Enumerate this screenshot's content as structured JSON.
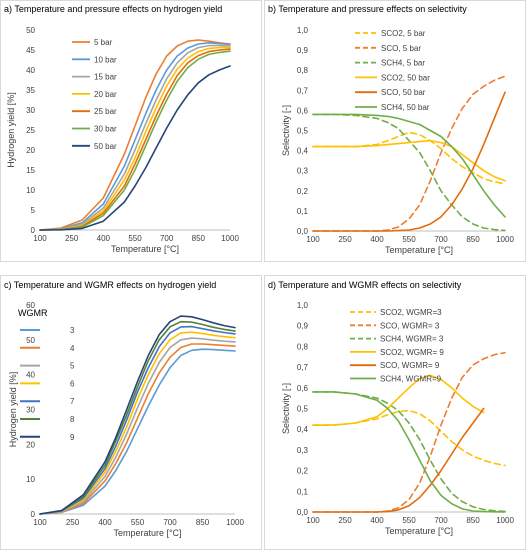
{
  "colors": {
    "orange": "#ED7D31",
    "lightblue": "#5B9BD5",
    "gray": "#A5A5A5",
    "yellow": "#FFC000",
    "darkorange": "#E46C0A",
    "green": "#70AD47",
    "navy": "#264478",
    "blue7": "#4472C4",
    "green8": "#548235"
  },
  "chart_data": [
    {
      "type": "line",
      "title": "a) Temperature and pressure effects on hydrogen yield",
      "xlabel": "Temperature [°C]",
      "ylabel": "Hydrogen yield [%]",
      "xlim": [
        100,
        1000
      ],
      "ylim": [
        0,
        50
      ],
      "xticks": [
        "100",
        "250",
        "400",
        "550",
        "700",
        "850",
        "1000"
      ],
      "yticks": [
        "0",
        "5",
        "10",
        "15",
        "20",
        "25",
        "30",
        "35",
        "40",
        "45",
        "50"
      ],
      "legend_title": "",
      "x": [
        100,
        200,
        300,
        400,
        500,
        550,
        600,
        650,
        700,
        750,
        800,
        850,
        900,
        950,
        1000
      ],
      "series": [
        {
          "name": "5 bar",
          "color": "#ED7D31",
          "dash": "",
          "values": [
            0,
            0.5,
            2.5,
            8,
            19,
            26,
            33,
            39,
            43.5,
            46,
            47.2,
            47.5,
            47.2,
            46.8,
            46.5
          ]
        },
        {
          "name": "10 bar",
          "color": "#5B9BD5",
          "dash": "",
          "values": [
            0,
            0.3,
            1.8,
            6.5,
            16,
            22.5,
            29,
            35,
            40,
            43.5,
            45.5,
            46.5,
            46.8,
            46.6,
            46.4
          ]
        },
        {
          "name": "15 bar",
          "color": "#A5A5A5",
          "dash": "",
          "values": [
            0,
            0.2,
            1.4,
            5.5,
            14,
            20,
            26.5,
            32.5,
            37.8,
            41.8,
            44.3,
            45.6,
            46.1,
            46.1,
            46
          ]
        },
        {
          "name": "20 bar",
          "color": "#FFC000",
          "dash": "",
          "values": [
            0,
            0.2,
            1.1,
            4.8,
            12.5,
            18,
            24.5,
            30.5,
            36,
            40.2,
            43,
            44.6,
            45.4,
            45.6,
            45.6
          ]
        },
        {
          "name": "25 bar",
          "color": "#E46C0A",
          "dash": "",
          "values": [
            0,
            0.1,
            0.9,
            4.2,
            11,
            16.5,
            22.5,
            28.5,
            34,
            38.6,
            41.8,
            43.6,
            44.6,
            45,
            45.2
          ]
        },
        {
          "name": "30 bar",
          "color": "#70AD47",
          "dash": "",
          "values": [
            0,
            0.1,
            0.7,
            3.6,
            10,
            15,
            21,
            27,
            32.5,
            37.2,
            40.6,
            42.7,
            43.9,
            44.4,
            44.7
          ]
        },
        {
          "name": "50 bar",
          "color": "#264478",
          "dash": "",
          "values": [
            0,
            0.05,
            0.4,
            2.2,
            7,
            11,
            15.5,
            20.5,
            25.5,
            30,
            33.8,
            36.8,
            38.8,
            40,
            41
          ]
        }
      ]
    },
    {
      "type": "line",
      "title": "b) Temperature and pressure effects on selectivity",
      "xlabel": "Temperature [°C]",
      "ylabel": "Selectivity [-]",
      "xlim": [
        100,
        1000
      ],
      "ylim": [
        0,
        1
      ],
      "xticks": [
        "100",
        "250",
        "400",
        "550",
        "700",
        "850",
        "1000"
      ],
      "yticks": [
        "0,0",
        "0,1",
        "0,2",
        "0,3",
        "0,4",
        "0,5",
        "0,6",
        "0,7",
        "0,8",
        "0,9",
        "1,0"
      ],
      "legend_title": "",
      "x": [
        100,
        200,
        300,
        400,
        450,
        500,
        550,
        600,
        650,
        700,
        750,
        800,
        850,
        900,
        950,
        1000
      ],
      "series": [
        {
          "name": "SCO2, 5 bar",
          "color": "#FFC000",
          "dash": "6,4",
          "values": [
            0.42,
            0.42,
            0.42,
            0.43,
            0.45,
            0.47,
            0.49,
            0.48,
            0.45,
            0.41,
            0.36,
            0.32,
            0.29,
            0.26,
            0.245,
            0.235
          ]
        },
        {
          "name": "SCO, 5 bar",
          "color": "#ED7D31",
          "dash": "6,4",
          "values": [
            0,
            0,
            0,
            0,
            0.005,
            0.02,
            0.06,
            0.13,
            0.25,
            0.39,
            0.51,
            0.61,
            0.68,
            0.72,
            0.75,
            0.77
          ]
        },
        {
          "name": "SCH4, 5 bar",
          "color": "#70AD47",
          "dash": "6,4",
          "values": [
            0.58,
            0.58,
            0.575,
            0.56,
            0.54,
            0.51,
            0.45,
            0.39,
            0.3,
            0.2,
            0.13,
            0.07,
            0.035,
            0.015,
            0.007,
            0.003
          ]
        },
        {
          "name": "SCO2, 50 bar",
          "color": "#FFC000",
          "dash": "",
          "values": [
            0.42,
            0.42,
            0.42,
            0.425,
            0.43,
            0.435,
            0.44,
            0.445,
            0.45,
            0.44,
            0.42,
            0.38,
            0.34,
            0.3,
            0.27,
            0.25
          ]
        },
        {
          "name": "SCO, 50 bar",
          "color": "#E46C0A",
          "dash": "",
          "values": [
            0,
            0,
            0,
            0,
            0,
            0.002,
            0.005,
            0.015,
            0.035,
            0.07,
            0.13,
            0.21,
            0.31,
            0.43,
            0.56,
            0.69
          ]
        },
        {
          "name": "SCH4, 50 bar",
          "color": "#70AD47",
          "dash": "",
          "values": [
            0.58,
            0.58,
            0.58,
            0.575,
            0.57,
            0.56,
            0.545,
            0.53,
            0.5,
            0.47,
            0.42,
            0.36,
            0.28,
            0.2,
            0.13,
            0.07
          ]
        }
      ]
    },
    {
      "type": "line",
      "title": "c) Temperature and WGMR effects on hydrogen yield",
      "xlabel": "Temperature [°C]",
      "ylabel": "Hydrogen yield [%]",
      "xlim": [
        100,
        1000
      ],
      "ylim": [
        0,
        60
      ],
      "xticks": [
        "100",
        "250",
        "400",
        "550",
        "700",
        "850",
        "1000"
      ],
      "yticks": [
        "0",
        "10",
        "20",
        "30",
        "40",
        "50",
        "60"
      ],
      "legend_title": "WGMR",
      "x": [
        100,
        200,
        300,
        400,
        450,
        500,
        550,
        600,
        650,
        700,
        750,
        800,
        850,
        900,
        950,
        1000
      ],
      "series": [
        {
          "name": "3",
          "color": "#5B9BD5",
          "dash": "",
          "values": [
            0,
            0.5,
            2.5,
            8,
            12.5,
            18,
            24.5,
            31,
            37,
            42,
            45.5,
            47,
            47.3,
            47.2,
            47,
            46.8
          ]
        },
        {
          "name": "4",
          "color": "#ED7D31",
          "dash": "",
          "values": [
            0,
            0.6,
            3,
            9.5,
            14.5,
            20.5,
            27.5,
            34.5,
            40.5,
            45,
            47.8,
            48.8,
            48.8,
            48.6,
            48.4,
            48.2
          ]
        },
        {
          "name": "5",
          "color": "#A5A5A5",
          "dash": "",
          "values": [
            0,
            0.7,
            3.5,
            10.8,
            16.3,
            23,
            30.5,
            37.5,
            43.5,
            47.8,
            50,
            50.5,
            50.3,
            49.9,
            49.6,
            49.4
          ]
        },
        {
          "name": "6",
          "color": "#FFC000",
          "dash": "",
          "values": [
            0,
            0.8,
            4,
            12,
            18,
            25,
            33,
            40,
            46,
            50,
            52,
            52.2,
            51.8,
            51.3,
            50.9,
            50.6
          ]
        },
        {
          "name": "7",
          "color": "#4472C4",
          "dash": "",
          "values": [
            0,
            0.9,
            4.5,
            13,
            19.5,
            27,
            35,
            42,
            48,
            52,
            53.7,
            53.8,
            53.2,
            52.6,
            52.1,
            51.7
          ]
        },
        {
          "name": "8",
          "color": "#548235",
          "dash": "",
          "values": [
            0,
            1,
            5,
            14,
            21,
            28.5,
            36.5,
            44,
            50,
            53.7,
            55.2,
            55.1,
            54.4,
            53.6,
            53,
            52.5
          ]
        },
        {
          "name": "9",
          "color": "#264478",
          "dash": "",
          "values": [
            0,
            1,
            5.5,
            15,
            22,
            30,
            38,
            45.5,
            51.5,
            55.2,
            56.8,
            56.6,
            55.8,
            54.9,
            54.1,
            53.5
          ]
        }
      ]
    },
    {
      "type": "line",
      "title": "d) Temperature and WGMR effects on selectivity",
      "xlabel": "Temperature [°C]",
      "ylabel": "Selectivity [-]",
      "xlim": [
        100,
        1000
      ],
      "ylim": [
        0,
        1
      ],
      "xticks": [
        "100",
        "250",
        "400",
        "550",
        "700",
        "850",
        "1000"
      ],
      "yticks": [
        "0,0",
        "0,1",
        "0,2",
        "0,3",
        "0,4",
        "0,5",
        "0,6",
        "0,7",
        "0,8",
        "0,9",
        "1,0"
      ],
      "legend_title": "",
      "x": [
        100,
        200,
        300,
        400,
        450,
        500,
        550,
        600,
        650,
        700,
        750,
        800,
        850,
        900,
        950,
        1000
      ],
      "series": [
        {
          "name": "SCO2, WGMR=3",
          "color": "#FFC000",
          "dash": "6,4",
          "values": [
            0.42,
            0.42,
            0.43,
            0.45,
            0.47,
            0.485,
            0.49,
            0.475,
            0.44,
            0.39,
            0.34,
            0.3,
            0.27,
            0.25,
            0.235,
            0.225
          ]
        },
        {
          "name": "SCO, WGMR= 3",
          "color": "#ED7D31",
          "dash": "6,4",
          "values": [
            0,
            0,
            0,
            0,
            0.005,
            0.02,
            0.06,
            0.14,
            0.27,
            0.42,
            0.55,
            0.65,
            0.71,
            0.74,
            0.76,
            0.77
          ]
        },
        {
          "name": "SCH4, WGMR= 3",
          "color": "#70AD47",
          "dash": "6,4",
          "values": [
            0.58,
            0.58,
            0.57,
            0.55,
            0.525,
            0.49,
            0.43,
            0.35,
            0.25,
            0.16,
            0.09,
            0.05,
            0.025,
            0.012,
            0.006,
            0.003
          ]
        },
        {
          "name": "SCO2, WGMR= 9",
          "color": "#FFC000",
          "dash": "",
          "values": [
            0.42,
            0.42,
            0.43,
            0.46,
            0.5,
            0.55,
            0.6,
            0.645,
            0.66,
            0.64,
            0.6,
            0.55,
            0.51,
            0.48,
            null,
            null
          ]
        },
        {
          "name": "SCO, WGMR= 9",
          "color": "#E46C0A",
          "dash": "",
          "values": [
            0,
            0,
            0,
            0,
            0.002,
            0.01,
            0.03,
            0.07,
            0.13,
            0.2,
            0.28,
            0.36,
            0.43,
            0.5,
            null,
            null
          ]
        },
        {
          "name": "SCH4, WGMR=9",
          "color": "#70AD47",
          "dash": "",
          "values": [
            0.58,
            0.58,
            0.57,
            0.54,
            0.5,
            0.44,
            0.35,
            0.25,
            0.15,
            0.08,
            0.04,
            0.015,
            0.005,
            0.002,
            0.001,
            0.0005
          ]
        }
      ]
    }
  ]
}
